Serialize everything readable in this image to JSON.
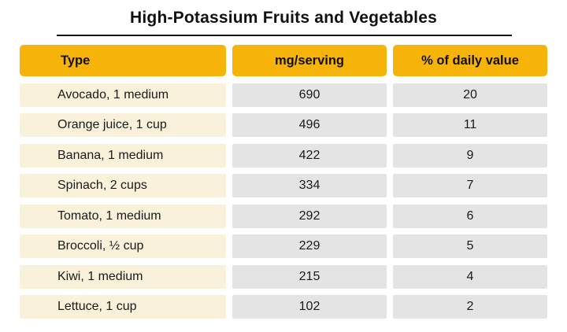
{
  "title": "High-Potassium Fruits and Vegetables",
  "table": {
    "headers": [
      "Type",
      "mg/serving",
      "% of daily value"
    ],
    "rows": [
      {
        "type": "Avocado, 1 medium",
        "mg": "690",
        "pct": "20"
      },
      {
        "type": "Orange juice, 1 cup",
        "mg": "496",
        "pct": "11"
      },
      {
        "type": "Banana, 1 medium",
        "mg": "422",
        "pct": "9"
      },
      {
        "type": "Spinach, 2 cups",
        "mg": "334",
        "pct": "7"
      },
      {
        "type": "Tomato, 1 medium",
        "mg": "292",
        "pct": "6"
      },
      {
        "type": "Broccoli, ½ cup",
        "mg": "229",
        "pct": "5"
      },
      {
        "type": "Kiwi, 1 medium",
        "mg": "215",
        "pct": "4"
      },
      {
        "type": "Lettuce, 1 cup",
        "mg": "102",
        "pct": "2"
      }
    ]
  },
  "colors": {
    "header_bg": "#F6B40A",
    "label_bg": "#FAF1DB",
    "value_bg": "#E4E4E4",
    "text": "#1A1A1A",
    "rule": "#111111"
  },
  "chart_data": {
    "type": "table",
    "title": "High-Potassium Fruits and Vegetables",
    "columns": [
      "Type",
      "mg/serving",
      "% of daily value"
    ],
    "rows": [
      [
        "Avocado, 1 medium",
        690,
        20
      ],
      [
        "Orange juice, 1 cup",
        496,
        11
      ],
      [
        "Banana, 1 medium",
        422,
        9
      ],
      [
        "Spinach, 2 cups",
        334,
        7
      ],
      [
        "Tomato, 1 medium",
        292,
        6
      ],
      [
        "Broccoli, ½ cup",
        229,
        5
      ],
      [
        "Kiwi, 1 medium",
        215,
        4
      ],
      [
        "Lettuce, 1 cup",
        102,
        2
      ]
    ]
  }
}
